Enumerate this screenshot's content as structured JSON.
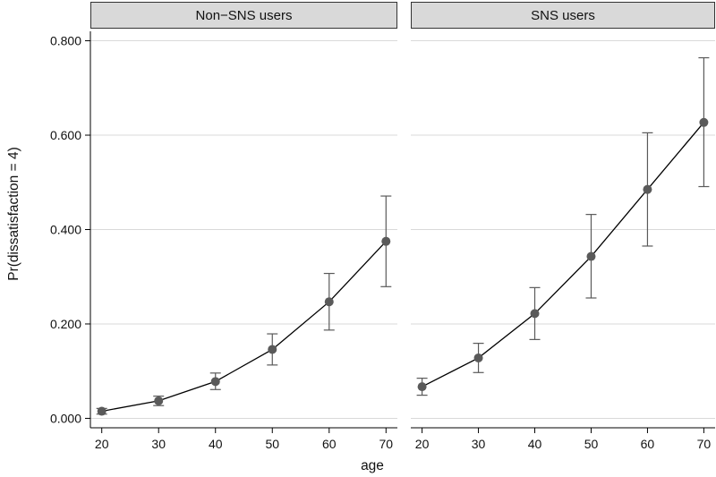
{
  "chart_data": {
    "type": "line",
    "xlabel": "age",
    "ylabel": "Pr(dissatisfaction = 4)",
    "x": [
      20,
      30,
      40,
      50,
      60,
      70
    ],
    "xlim": [
      18,
      72
    ],
    "ylim": [
      -0.02,
      0.82
    ],
    "y_ticks": [
      0,
      0.2,
      0.4,
      0.6,
      0.8
    ],
    "y_tick_labels": [
      "0.000",
      "0.200",
      "0.400",
      "0.600",
      "0.800"
    ],
    "x_ticks": [
      20,
      30,
      40,
      50,
      60,
      70
    ],
    "x_tick_labels": [
      "20",
      "30",
      "40",
      "50",
      "60",
      "70"
    ],
    "grid": "horizontal",
    "panels": [
      {
        "title": "Non−SNS users",
        "values": [
          0.015,
          0.037,
          0.078,
          0.146,
          0.247,
          0.375
        ],
        "ci_low": [
          0.009,
          0.027,
          0.061,
          0.113,
          0.187,
          0.279
        ],
        "ci_high": [
          0.021,
          0.047,
          0.096,
          0.179,
          0.307,
          0.471
        ]
      },
      {
        "title": "SNS users",
        "values": [
          0.067,
          0.128,
          0.222,
          0.343,
          0.485,
          0.627
        ],
        "ci_low": [
          0.049,
          0.097,
          0.167,
          0.255,
          0.365,
          0.491
        ],
        "ci_high": [
          0.085,
          0.159,
          0.277,
          0.432,
          0.605,
          0.764
        ]
      }
    ],
    "colors": {
      "line": "#000000",
      "marker": "#5a5a5a",
      "errorbar": "#5a5a5a",
      "grid": "#d9d9d9",
      "strip_fill": "#d9d9d9",
      "strip_border": "#333333"
    }
  }
}
